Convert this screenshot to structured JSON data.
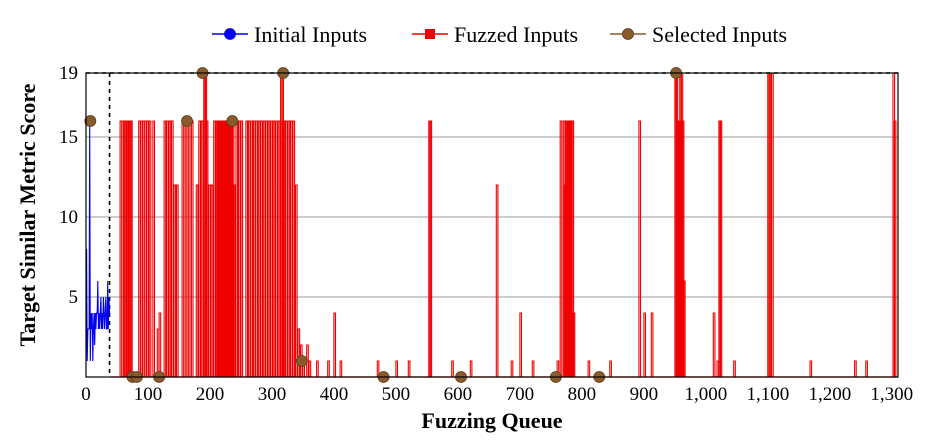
{
  "chart_data": {
    "type": "line",
    "xlabel": "Fuzzing Queue",
    "ylabel": "Target Similar Metric Score",
    "xlim": [
      0,
      1310
    ],
    "ylim": [
      0,
      19
    ],
    "xticks": [
      0,
      100,
      200,
      300,
      400,
      500,
      600,
      700,
      800,
      900,
      1000,
      1100,
      1200,
      1300
    ],
    "xtick_labels": [
      "0",
      "100",
      "200",
      "300",
      "400",
      "500",
      "600",
      "700",
      "800",
      "900",
      "1,000",
      "1,100",
      "1,200",
      "1,300"
    ],
    "yticks": [
      5,
      10,
      15,
      19
    ],
    "ytick_labels": [
      "5",
      "10",
      "15",
      "19"
    ],
    "grid": "horizontal",
    "legend_position": "top",
    "reference_lines": {
      "horizontal_y": 19,
      "vertical_x": 38
    },
    "series": [
      {
        "name": "Initial Inputs",
        "color": "#0000ee",
        "marker": "circle",
        "points": [
          [
            1,
            8
          ],
          [
            2,
            1
          ],
          [
            3,
            3
          ],
          [
            4,
            3
          ],
          [
            5,
            3
          ],
          [
            6,
            16
          ],
          [
            7,
            1
          ],
          [
            8,
            4
          ],
          [
            9,
            3
          ],
          [
            10,
            4
          ],
          [
            11,
            1
          ],
          [
            12,
            3
          ],
          [
            13,
            4
          ],
          [
            14,
            2
          ],
          [
            15,
            4
          ],
          [
            16,
            3
          ],
          [
            17,
            4
          ],
          [
            18,
            4
          ],
          [
            19,
            6
          ],
          [
            20,
            3
          ],
          [
            21,
            4
          ],
          [
            22,
            3
          ],
          [
            23,
            4
          ],
          [
            24,
            5
          ],
          [
            25,
            3
          ],
          [
            26,
            4
          ],
          [
            27,
            3
          ],
          [
            28,
            5
          ],
          [
            29,
            4
          ],
          [
            30,
            3
          ],
          [
            31,
            4
          ],
          [
            32,
            5
          ],
          [
            33,
            3
          ],
          [
            34,
            3
          ],
          [
            35,
            6
          ],
          [
            36,
            3
          ],
          [
            37,
            5
          ],
          [
            38,
            4
          ]
        ]
      },
      {
        "name": "Fuzzed Inputs",
        "color": "#ee0000",
        "marker": "square",
        "spikes": [
          [
            55,
            16
          ],
          [
            58,
            16
          ],
          [
            60,
            0
          ],
          [
            62,
            16
          ],
          [
            64,
            16
          ],
          [
            66,
            16
          ],
          [
            68,
            0
          ],
          [
            70,
            16
          ],
          [
            72,
            16
          ],
          [
            75,
            0
          ],
          [
            80,
            0
          ],
          [
            85,
            16
          ],
          [
            88,
            16
          ],
          [
            92,
            16
          ],
          [
            95,
            16
          ],
          [
            98,
            16
          ],
          [
            102,
            16
          ],
          [
            108,
            16
          ],
          [
            112,
            0
          ],
          [
            115,
            3
          ],
          [
            118,
            4
          ],
          [
            122,
            0
          ],
          [
            126,
            16
          ],
          [
            130,
            16
          ],
          [
            134,
            16
          ],
          [
            138,
            16
          ],
          [
            142,
            12
          ],
          [
            146,
            12
          ],
          [
            150,
            0
          ],
          [
            155,
            16
          ],
          [
            160,
            16
          ],
          [
            165,
            16
          ],
          [
            170,
            16
          ],
          [
            174,
            0
          ],
          [
            178,
            12
          ],
          [
            182,
            16
          ],
          [
            186,
            16
          ],
          [
            190,
            19
          ],
          [
            192,
            19
          ],
          [
            194,
            16
          ],
          [
            198,
            12
          ],
          [
            202,
            12
          ],
          [
            206,
            16
          ],
          [
            210,
            16
          ],
          [
            212,
            16
          ],
          [
            214,
            16
          ],
          [
            216,
            16
          ],
          [
            218,
            16
          ],
          [
            220,
            16
          ],
          [
            222,
            16
          ],
          [
            224,
            16
          ],
          [
            226,
            16
          ],
          [
            228,
            16
          ],
          [
            230,
            16
          ],
          [
            232,
            16
          ],
          [
            234,
            16
          ],
          [
            236,
            16
          ],
          [
            238,
            12
          ],
          [
            242,
            16
          ],
          [
            246,
            16
          ],
          [
            250,
            16
          ],
          [
            254,
            0
          ],
          [
            258,
            16
          ],
          [
            262,
            16
          ],
          [
            266,
            16
          ],
          [
            270,
            16
          ],
          [
            274,
            16
          ],
          [
            278,
            16
          ],
          [
            282,
            16
          ],
          [
            286,
            16
          ],
          [
            290,
            16
          ],
          [
            294,
            16
          ],
          [
            298,
            16
          ],
          [
            302,
            16
          ],
          [
            306,
            16
          ],
          [
            310,
            16
          ],
          [
            314,
            19
          ],
          [
            316,
            19
          ],
          [
            318,
            16
          ],
          [
            322,
            16
          ],
          [
            326,
            16
          ],
          [
            330,
            16
          ],
          [
            334,
            16
          ],
          [
            338,
            12
          ],
          [
            342,
            3
          ],
          [
            346,
            2
          ],
          [
            350,
            1
          ],
          [
            356,
            2
          ],
          [
            360,
            1
          ],
          [
            372,
            1
          ],
          [
            390,
            1
          ],
          [
            400,
            4
          ],
          [
            410,
            1
          ],
          [
            470,
            1
          ],
          [
            500,
            1
          ],
          [
            520,
            1
          ],
          [
            553,
            16
          ],
          [
            555,
            16
          ],
          [
            590,
            1
          ],
          [
            620,
            1
          ],
          [
            662,
            12
          ],
          [
            686,
            1
          ],
          [
            700,
            4
          ],
          [
            720,
            1
          ],
          [
            760,
            1
          ],
          [
            765,
            16
          ],
          [
            770,
            16
          ],
          [
            772,
            12
          ],
          [
            774,
            16
          ],
          [
            776,
            16
          ],
          [
            778,
            16
          ],
          [
            780,
            16
          ],
          [
            782,
            16
          ],
          [
            784,
            16
          ],
          [
            786,
            4
          ],
          [
            810,
            1
          ],
          [
            845,
            1
          ],
          [
            892,
            16
          ],
          [
            900,
            4
          ],
          [
            912,
            4
          ],
          [
            950,
            19
          ],
          [
            952,
            19
          ],
          [
            954,
            16
          ],
          [
            956,
            16
          ],
          [
            958,
            19
          ],
          [
            960,
            19
          ],
          [
            962,
            16
          ],
          [
            964,
            6
          ],
          [
            1012,
            4
          ],
          [
            1018,
            1
          ],
          [
            1021,
            16
          ],
          [
            1023,
            16
          ],
          [
            1045,
            1
          ],
          [
            1100,
            19
          ],
          [
            1102,
            19
          ],
          [
            1106,
            19
          ],
          [
            1168,
            1
          ],
          [
            1240,
            1
          ],
          [
            1258,
            1
          ],
          [
            1302,
            19
          ],
          [
            1304,
            16
          ]
        ]
      },
      {
        "name": "Selected Inputs",
        "color": "#8b5a2b",
        "marker": "circle",
        "points": [
          [
            7,
            16
          ],
          [
            75,
            0
          ],
          [
            82,
            0
          ],
          [
            118,
            0
          ],
          [
            163,
            16
          ],
          [
            188,
            19
          ],
          [
            236,
            16
          ],
          [
            318,
            19
          ],
          [
            348,
            1
          ],
          [
            480,
            0
          ],
          [
            605,
            0
          ],
          [
            758,
            0
          ],
          [
            828,
            0
          ],
          [
            952,
            19
          ]
        ]
      }
    ]
  }
}
